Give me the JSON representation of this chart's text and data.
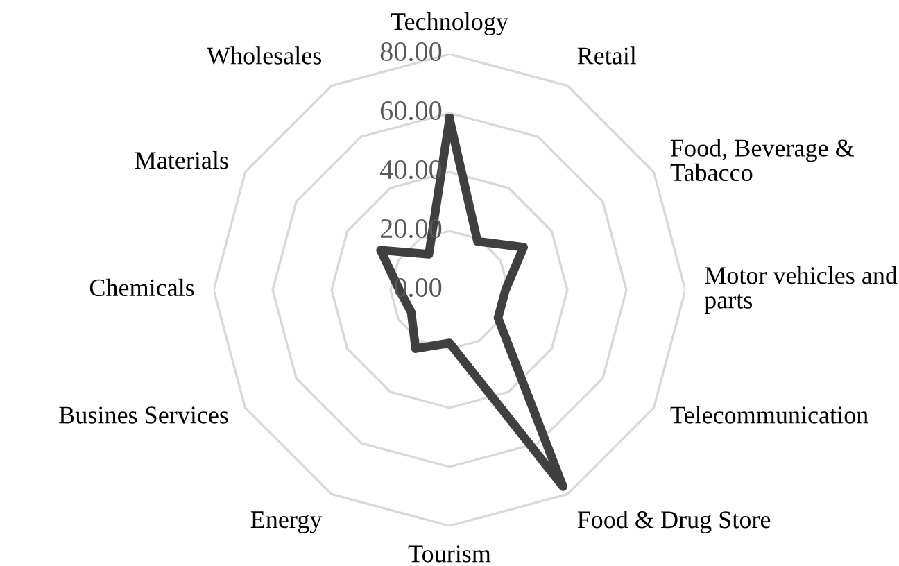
{
  "chart_data": {
    "type": "radar",
    "categories": [
      "Technology",
      "Retail",
      "Food, Beverage &\nTabacco",
      "Motor vehicles and\nparts",
      "Telecommunication",
      "Food & Drug Store",
      "Tourism",
      "Energy",
      "Busines Services",
      "Chemicals",
      "Materials",
      "Wholesales"
    ],
    "series": [
      {
        "color": "#404040",
        "values": [
          58,
          19,
          29,
          19,
          19,
          77,
          18,
          23,
          15,
          17,
          27,
          14
        ]
      }
    ],
    "ylim": [
      0,
      80
    ],
    "yticks": [
      {
        "value": 0,
        "label": "0.00"
      },
      {
        "value": 20,
        "label": "20.00"
      },
      {
        "value": 40,
        "label": "40.00"
      },
      {
        "value": 60,
        "label": "60.00"
      },
      {
        "value": 80,
        "label": "80.00"
      }
    ],
    "grid": true,
    "marker": "none",
    "line_style": "solid"
  }
}
